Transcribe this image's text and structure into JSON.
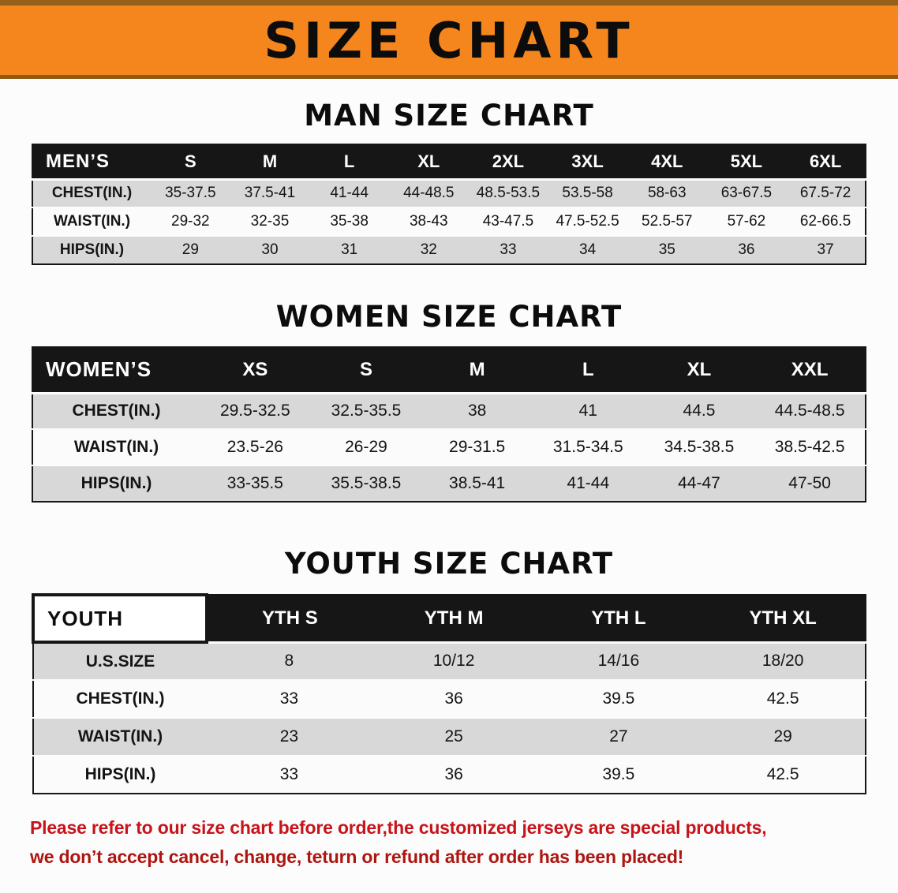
{
  "banner": {
    "title": "SIZE CHART"
  },
  "chart_data": [
    {
      "type": "table",
      "title": "MAN SIZE CHART",
      "header": [
        "MEN’S",
        "S",
        "M",
        "L",
        "XL",
        "2XL",
        "3XL",
        "4XL",
        "5XL",
        "6XL"
      ],
      "rows": [
        {
          "label": "CHEST(IN.)",
          "values": [
            "35-37.5",
            "37.5-41",
            "41-44",
            "44-48.5",
            "48.5-53.5",
            "53.5-58",
            "58-63",
            "63-67.5",
            "67.5-72"
          ]
        },
        {
          "label": "WAIST(IN.)",
          "values": [
            "29-32",
            "32-35",
            "35-38",
            "38-43",
            "43-47.5",
            "47.5-52.5",
            "52.5-57",
            "57-62",
            "62-66.5"
          ]
        },
        {
          "label": "HIPS(IN.)",
          "values": [
            "29",
            "30",
            "31",
            "32",
            "33",
            "34",
            "35",
            "36",
            "37"
          ]
        }
      ]
    },
    {
      "type": "table",
      "title": "WOMEN SIZE CHART",
      "header": [
        "WOMEN’S",
        "XS",
        "S",
        "M",
        "L",
        "XL",
        "XXL"
      ],
      "rows": [
        {
          "label": "CHEST(IN.)",
          "values": [
            "29.5-32.5",
            "32.5-35.5",
            "38",
            "41",
            "44.5",
            "44.5-48.5"
          ]
        },
        {
          "label": "WAIST(IN.)",
          "values": [
            "23.5-26",
            "26-29",
            "29-31.5",
            "31.5-34.5",
            "34.5-38.5",
            "38.5-42.5"
          ]
        },
        {
          "label": "HIPS(IN.)",
          "values": [
            "33-35.5",
            "35.5-38.5",
            "38.5-41",
            "41-44",
            "44-47",
            "47-50"
          ]
        }
      ]
    },
    {
      "type": "table",
      "title": "YOUTH SIZE CHART",
      "header": [
        "YOUTH",
        "YTH S",
        "YTH M",
        "YTH L",
        "YTH XL"
      ],
      "rows": [
        {
          "label": "U.S.SIZE",
          "values": [
            "8",
            "10/12",
            "14/16",
            "18/20"
          ]
        },
        {
          "label": "CHEST(IN.)",
          "values": [
            "33",
            "36",
            "39.5",
            "42.5"
          ]
        },
        {
          "label": "WAIST(IN.)",
          "values": [
            "23",
            "25",
            "27",
            "29"
          ]
        },
        {
          "label": "HIPS(IN.)",
          "values": [
            "33",
            "36",
            "39.5",
            "42.5"
          ]
        }
      ]
    }
  ],
  "disclaimer": {
    "line1": "Please refer to our size chart before order,the customized jerseys are special products,",
    "line2": "we don’t accept cancel, change, teturn or refund after order has been placed!",
    "text_color": "#c8131a"
  },
  "colors": {
    "banner_orange": "#f5861d",
    "banner_edge_brown": "#96601c",
    "table_header_black": "#161616",
    "row_gray": "#d8d8d8",
    "disclaimer_red": "#c8131a"
  }
}
